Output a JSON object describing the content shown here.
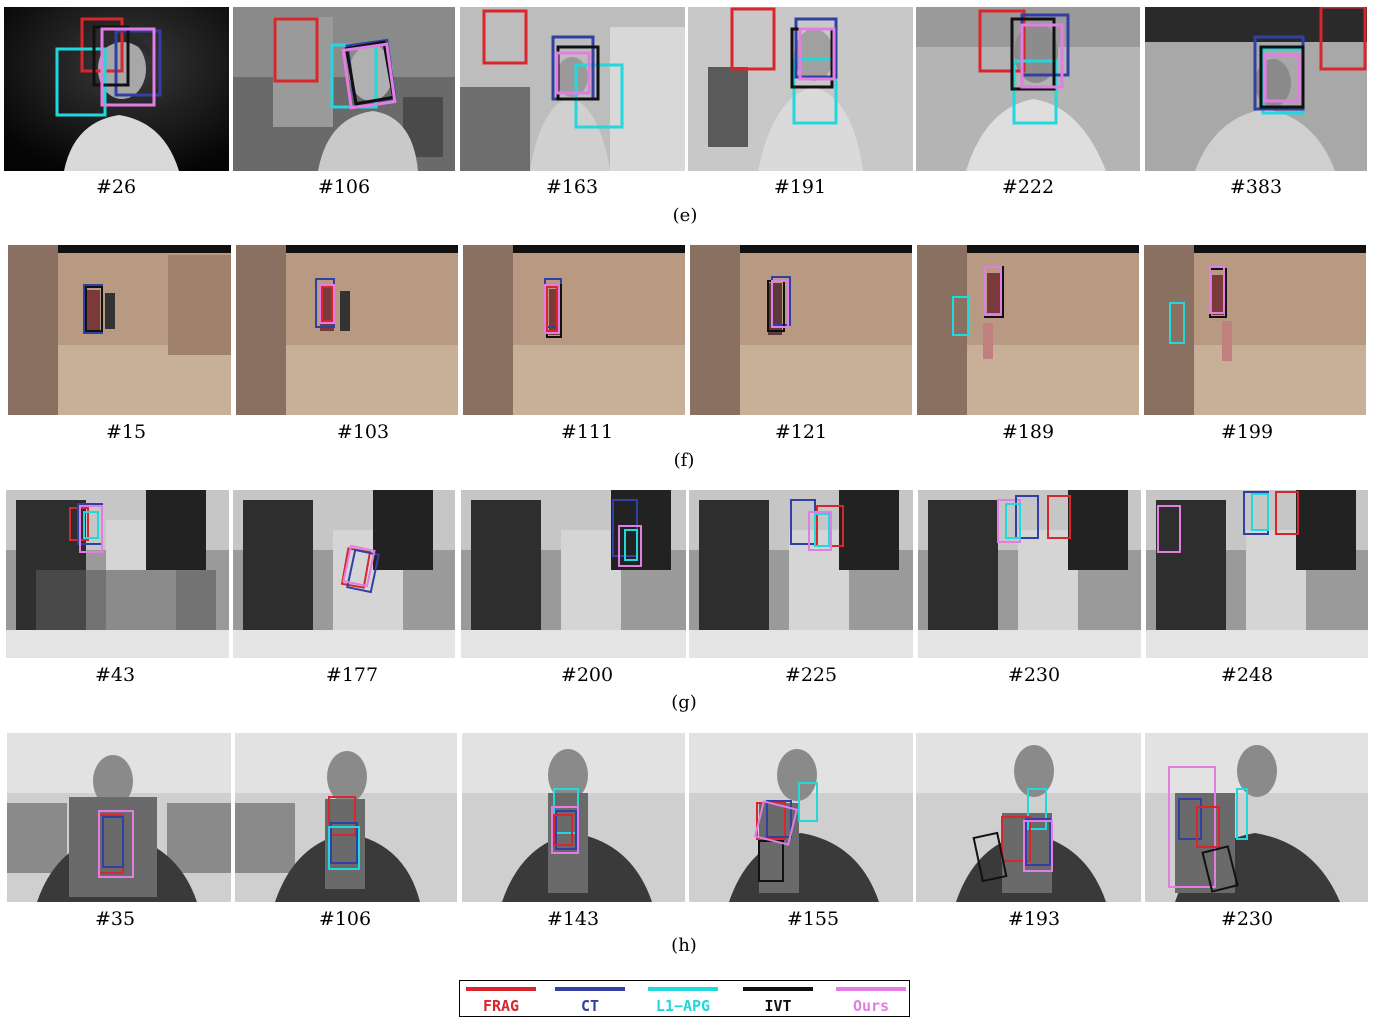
{
  "rows": [
    {
      "label": "(e)",
      "frames": [
        "#26",
        "#106",
        "#163",
        "#191",
        "#222",
        "#383"
      ]
    },
    {
      "label": "(f)",
      "frames": [
        "#15",
        "#103",
        "#111",
        "#121",
        "#189",
        "#199"
      ]
    },
    {
      "label": "(g)",
      "frames": [
        "#43",
        "#177",
        "#200",
        "#225",
        "#230",
        "#248"
      ]
    },
    {
      "label": "(h)",
      "frames": [
        "#35",
        "#106",
        "#143",
        "#155",
        "#193",
        "#230"
      ]
    }
  ],
  "legend": [
    {
      "name": "FRAG",
      "color": "#d9262c"
    },
    {
      "name": "CT",
      "color": "#3240a4"
    },
    {
      "name": "L1−APG",
      "color": "#22d8dc"
    },
    {
      "name": "IVT",
      "color": "#111111"
    },
    {
      "name": "Ours",
      "color": "#e27ee3"
    }
  ]
}
